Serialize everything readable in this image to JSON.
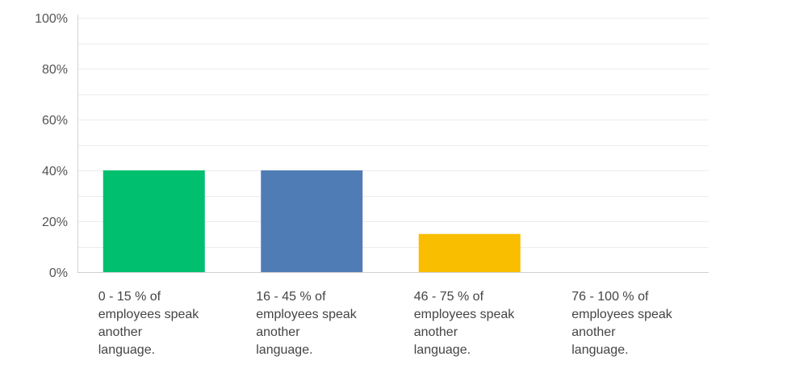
{
  "chart_data": {
    "type": "bar",
    "title": "",
    "xlabel": "",
    "ylabel": "",
    "ylim": [
      0,
      100
    ],
    "y_ticks": [
      "0%",
      "20%",
      "40%",
      "60%",
      "80%",
      "100%"
    ],
    "grid": true,
    "categories": [
      [
        "0 - 15 % of",
        "employees speak",
        "another",
        "language."
      ],
      [
        "16 - 45 % of",
        "employees speak",
        "another",
        "language."
      ],
      [
        "46 - 75 % of",
        "employees speak",
        "another",
        "language."
      ],
      [
        "76 - 100 % of",
        "employees speak",
        "another",
        "language."
      ]
    ],
    "values": [
      40,
      40,
      15,
      0
    ],
    "colors": [
      "#00bf6f",
      "#507cb6",
      "#f9be00",
      "#6bc8cd"
    ]
  }
}
